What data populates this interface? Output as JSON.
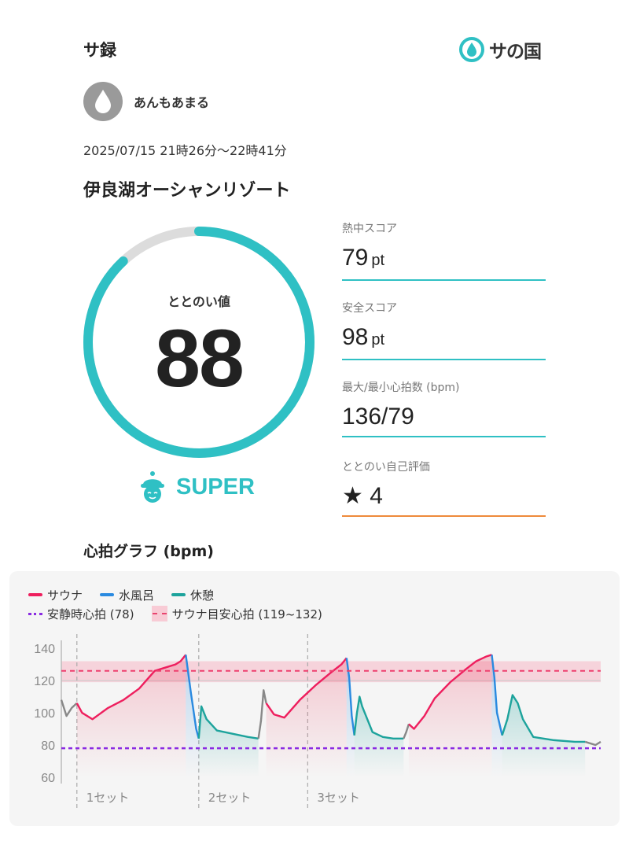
{
  "header": {
    "title": "サ録",
    "brand": "サの国"
  },
  "user": {
    "name": "あんもあまる"
  },
  "session": {
    "datetime": "2025/07/15 21時26分〜22時41分",
    "facility": "伊良湖オーシャンリゾート"
  },
  "totonoi": {
    "label": "ととのい値",
    "value": "88",
    "fraction": 0.88,
    "rank": "SUPER"
  },
  "stats": [
    {
      "label": "熱中スコア",
      "value": "79",
      "unit": "pt"
    },
    {
      "label": "安全スコア",
      "value": "98",
      "unit": "pt"
    },
    {
      "label": "最大/最小心拍数 (bpm)",
      "value": "136/79",
      "unit": ""
    },
    {
      "label": "ととのい自己評価",
      "value": "★ 4",
      "unit": ""
    }
  ],
  "heart_graph": {
    "title": "心拍グラフ (bpm)",
    "legend": {
      "sauna": "サウナ",
      "cold": "水風呂",
      "rest": "休憩",
      "resting_hr": "安静時心拍 (78)",
      "sauna_target": "サウナ目安心拍 (119~132)"
    },
    "set_labels": [
      "1セット",
      "2セット",
      "3セット"
    ]
  },
  "chart_data": {
    "type": "line",
    "ylim": [
      60,
      142
    ],
    "y_ticks": [
      "140",
      "120",
      "100",
      "80",
      "60"
    ],
    "xlim": [
      0,
      75
    ],
    "resting_hr": 78,
    "target_band": [
      119,
      132
    ],
    "target_line": 126,
    "colors": {
      "sauna": "#ee1f5e",
      "cold": "#2a8ae0",
      "rest": "#1da39c",
      "other": "#888888",
      "resting": "#8a2be2",
      "target": "#ee3f6e"
    },
    "set_starts": [
      3,
      26.5,
      47.5
    ],
    "segments": [
      {
        "phase": "other",
        "points": [
          [
            0,
            108
          ],
          [
            1,
            98
          ],
          [
            2,
            103
          ],
          [
            3,
            106
          ]
        ]
      },
      {
        "phase": "sauna",
        "points": [
          [
            3,
            106
          ],
          [
            4,
            100
          ],
          [
            6,
            96
          ],
          [
            9,
            103
          ],
          [
            12,
            108
          ],
          [
            15,
            115
          ],
          [
            18,
            126
          ],
          [
            20,
            128
          ],
          [
            22,
            130
          ],
          [
            23,
            132
          ],
          [
            24,
            136
          ]
        ]
      },
      {
        "phase": "cold",
        "points": [
          [
            24,
            136
          ],
          [
            25,
            112
          ],
          [
            26,
            90
          ],
          [
            26.5,
            84
          ]
        ]
      },
      {
        "phase": "rest",
        "points": [
          [
            26.5,
            84
          ],
          [
            27,
            104
          ],
          [
            28,
            96
          ],
          [
            30,
            89
          ],
          [
            33,
            87
          ],
          [
            36,
            85
          ],
          [
            38,
            84
          ]
        ]
      },
      {
        "phase": "other",
        "points": [
          [
            38,
            84
          ],
          [
            38.5,
            95
          ],
          [
            39,
            114
          ],
          [
            39.5,
            106
          ]
        ]
      },
      {
        "phase": "sauna",
        "points": [
          [
            39.5,
            106
          ],
          [
            41,
            99
          ],
          [
            43,
            97
          ],
          [
            46,
            108
          ],
          [
            49,
            117
          ],
          [
            52,
            125
          ],
          [
            54,
            130
          ],
          [
            55,
            134
          ]
        ]
      },
      {
        "phase": "cold",
        "points": [
          [
            55,
            134
          ],
          [
            55.5,
            122
          ],
          [
            56,
            98
          ],
          [
            56.5,
            86
          ]
        ]
      },
      {
        "phase": "rest",
        "points": [
          [
            56.5,
            86
          ],
          [
            57,
            100
          ],
          [
            57.5,
            110
          ],
          [
            58,
            104
          ],
          [
            60,
            88
          ],
          [
            62,
            85
          ],
          [
            64,
            84
          ],
          [
            66,
            84
          ]
        ]
      },
      {
        "phase": "other",
        "points": [
          [
            66,
            84
          ],
          [
            66.5,
            88
          ],
          [
            67,
            93
          ]
        ]
      },
      {
        "phase": "sauna",
        "points": [
          [
            67,
            93
          ],
          [
            68,
            90
          ],
          [
            70,
            98
          ],
          [
            72,
            109
          ],
          [
            75,
            119
          ],
          [
            78,
            127
          ],
          [
            80,
            132
          ],
          [
            82,
            135
          ],
          [
            83,
            136
          ]
        ]
      },
      {
        "phase": "cold",
        "points": [
          [
            83,
            136
          ],
          [
            83.5,
            122
          ],
          [
            84,
            100
          ],
          [
            85,
            86
          ]
        ]
      },
      {
        "phase": "rest",
        "points": [
          [
            85,
            86
          ],
          [
            86,
            96
          ],
          [
            87,
            111
          ],
          [
            88,
            106
          ],
          [
            89,
            96
          ],
          [
            91,
            85
          ],
          [
            95,
            83
          ],
          [
            99,
            82
          ],
          [
            101,
            82
          ]
        ]
      },
      {
        "phase": "other",
        "points": [
          [
            101,
            82
          ],
          [
            103,
            80
          ],
          [
            104,
            82
          ]
        ]
      }
    ]
  }
}
